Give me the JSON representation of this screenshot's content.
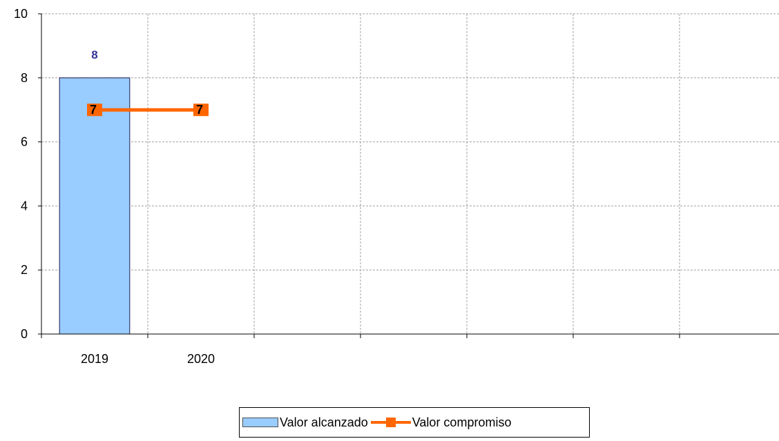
{
  "colors": {
    "bar_fill": "#99ccff",
    "bar_stroke": "#1a1a4d",
    "line": "#ff6600",
    "bar_label": "#333399",
    "grid": "#a0a0a0"
  },
  "chart_data": {
    "type": "bar",
    "categories": [
      "2019",
      "2020",
      "",
      "",
      "",
      "",
      ""
    ],
    "ylim": [
      0,
      10
    ],
    "yticks": [
      0,
      2,
      4,
      6,
      8,
      10
    ],
    "grid": true,
    "legend_position": "bottom-center",
    "series": [
      {
        "name": "Valor alcanzado",
        "type": "bar",
        "values": [
          8,
          null,
          null,
          null,
          null,
          null,
          null
        ]
      },
      {
        "name": "Valor compromiso",
        "type": "line",
        "values": [
          7,
          7,
          null,
          null,
          null,
          null,
          null
        ]
      }
    ]
  }
}
